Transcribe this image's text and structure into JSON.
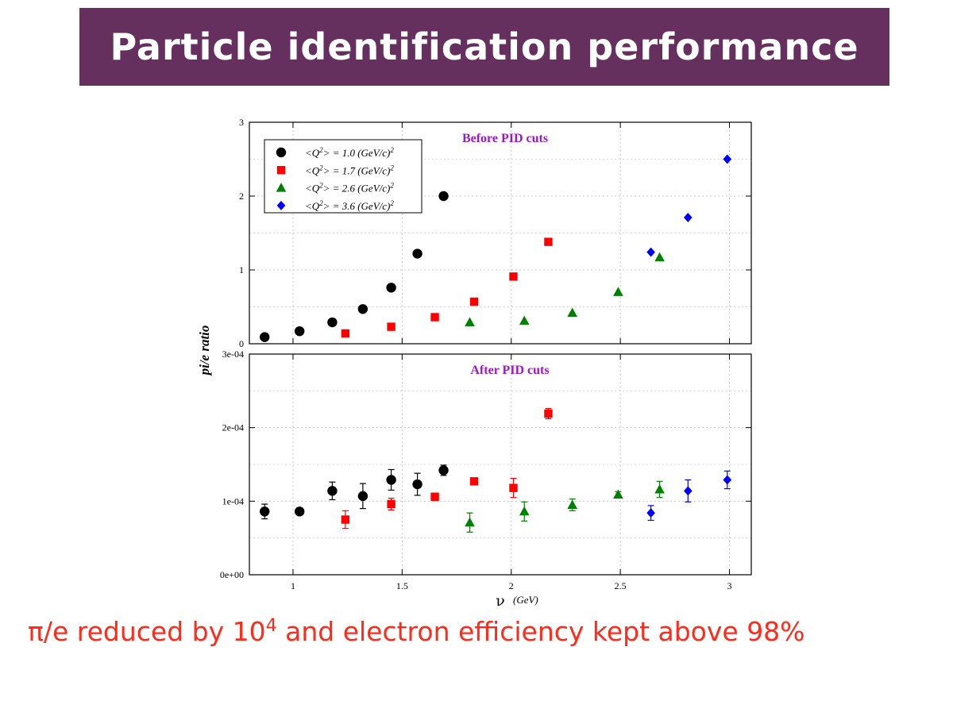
{
  "slide": {
    "title": "Particle identification performance",
    "caption": {
      "prefix": "π/e reduced by 10",
      "exponent": "4",
      "suffix": " and electron efficiency kept above 98%"
    }
  },
  "colors": {
    "title_bar": "#65305e",
    "title_text": "#ffffff",
    "caption": "#ff2a1a",
    "panel_title": "#9b17c8"
  },
  "chart_data": {
    "type": "scatter",
    "ylabel": "pi/e ratio",
    "xlabel_symbol": "ν",
    "xlabel_unit": "(GeV)",
    "xlim": [
      0.8,
      3.1
    ],
    "x_ticks": [
      1,
      1.5,
      2,
      2.5,
      3
    ],
    "x_tick_labels": [
      "1",
      "1.5",
      "2",
      "2.5",
      "3"
    ],
    "grid": true,
    "legend_position": "top-left",
    "series": [
      {
        "name_prefix": "<Q",
        "name_sup1": "2",
        "name_mid": "> = 1.0 (GeV/c)",
        "name_sup2": "2",
        "color": "#000000",
        "marker": "circle"
      },
      {
        "name_prefix": "<Q",
        "name_sup1": "2",
        "name_mid": "> = 1.7 (GeV/c)",
        "name_sup2": "2",
        "color": "#ff0000",
        "marker": "square"
      },
      {
        "name_prefix": "<Q",
        "name_sup1": "2",
        "name_mid": "> = 2.6 (GeV/c)",
        "name_sup2": "2",
        "color": "#008000",
        "marker": "triangle"
      },
      {
        "name_prefix": "<Q",
        "name_sup1": "2",
        "name_mid": "> = 3.6 (GeV/c)",
        "name_sup2": "2",
        "color": "#0000ff",
        "marker": "diamond"
      }
    ],
    "panels": [
      {
        "title": "Before PID cuts",
        "ylim": [
          0,
          3
        ],
        "y_ticks": [
          0,
          1,
          2,
          3
        ],
        "y_tick_labels": [
          "0",
          "1",
          "2",
          "3"
        ],
        "show_legend": true,
        "points": [
          [
            [
              0.87,
              0.09
            ],
            [
              1.03,
              0.17
            ],
            [
              1.18,
              0.29
            ],
            [
              1.32,
              0.47
            ],
            [
              1.45,
              0.76
            ],
            [
              1.57,
              1.22
            ],
            [
              1.69,
              2.0
            ]
          ],
          [
            [
              1.24,
              0.14
            ],
            [
              1.45,
              0.23
            ],
            [
              1.65,
              0.36
            ],
            [
              1.83,
              0.57
            ],
            [
              2.01,
              0.91
            ],
            [
              2.17,
              1.38
            ]
          ],
          [
            [
              1.81,
              0.29
            ],
            [
              2.06,
              0.31
            ],
            [
              2.28,
              0.42
            ],
            [
              2.49,
              0.7
            ],
            [
              2.68,
              1.17
            ]
          ],
          [
            [
              2.64,
              1.24
            ],
            [
              2.81,
              1.71
            ],
            [
              2.99,
              2.5
            ]
          ]
        ]
      },
      {
        "title": "After PID cuts",
        "ylim": [
          0,
          0.0003
        ],
        "y_ticks": [
          0,
          0.0001,
          0.0002,
          0.0003
        ],
        "y_tick_labels": [
          "0e+00",
          "1e-04",
          "2e-04",
          "3e-04"
        ],
        "show_legend": false,
        "points": [
          [
            [
              0.87,
              8.6e-05,
              1e-05
            ],
            [
              1.03,
              8.6e-05,
              4e-06
            ],
            [
              1.18,
              0.000114,
              1.2e-05
            ],
            [
              1.32,
              0.000107,
              1.7e-05
            ],
            [
              1.45,
              0.000129,
              1.4e-05
            ],
            [
              1.57,
              0.000123,
              1.5e-05
            ],
            [
              1.69,
              0.000142,
              7e-06
            ]
          ],
          [
            [
              1.24,
              7.5e-05,
              1.2e-05
            ],
            [
              1.45,
              9.6e-05,
              8e-06
            ],
            [
              1.65,
              0.000106,
              5e-06
            ],
            [
              1.83,
              0.000127,
              4e-06
            ],
            [
              2.01,
              0.000118,
              1.3e-05
            ],
            [
              2.17,
              0.000219,
              7e-06
            ]
          ],
          [
            [
              1.81,
              7.1e-05,
              1.3e-05
            ],
            [
              2.06,
              8.6e-05,
              1.3e-05
            ],
            [
              2.28,
              9.5e-05,
              8e-06
            ],
            [
              2.49,
              0.000109,
              4e-06
            ],
            [
              2.68,
              0.000116,
              1.1e-05
            ]
          ],
          [
            [
              2.64,
              8.4e-05,
              1e-05
            ],
            [
              2.81,
              0.000114,
              1.5e-05
            ],
            [
              2.99,
              0.000129,
              1.2e-05
            ]
          ]
        ]
      }
    ]
  }
}
